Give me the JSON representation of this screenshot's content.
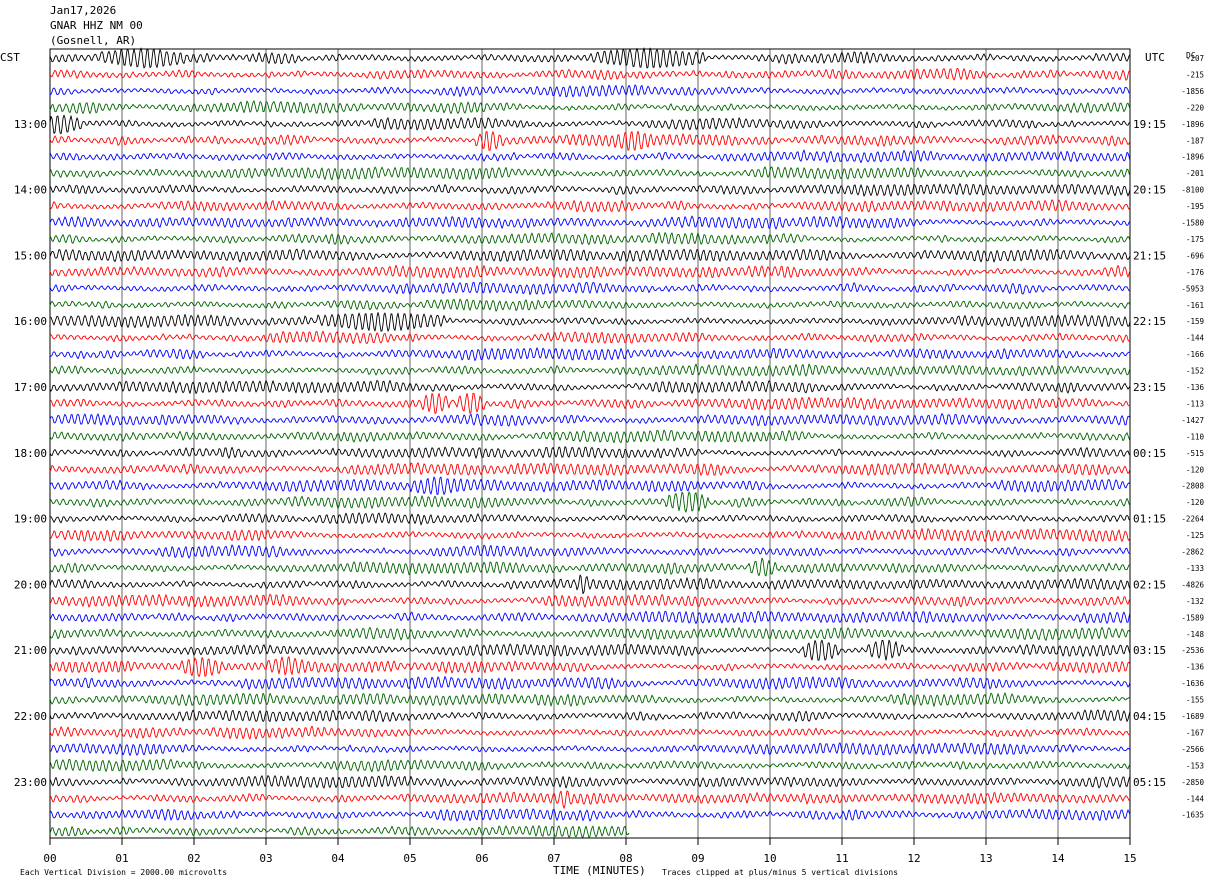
{
  "header": {
    "date": "Jan17,2026",
    "station": "GNAR HHZ NM 00",
    "location": "(Gosnell, AR)"
  },
  "left_tz": "CST",
  "right_tz": "UTC",
  "dc_label": "DC",
  "footer": {
    "scale_note": "Each Vertical Division = 2000.00 microvolts",
    "xlabel": "TIME (MINUTES)",
    "clip_note": "Traces clipped at plus/minus 5 vertical divisions"
  },
  "colors": {
    "trace_cycle": [
      "#000000",
      "#ff0000",
      "#0000ff",
      "#006400"
    ],
    "grid": "#000000",
    "background": "#ffffff"
  },
  "chart_data": {
    "type": "line",
    "subtype": "helicorder",
    "title": "GNAR HHZ NM 00",
    "xlabel": "TIME (MINUTES)",
    "xlim": [
      0,
      15
    ],
    "x_ticks": [
      "00",
      "01",
      "02",
      "03",
      "04",
      "05",
      "06",
      "07",
      "08",
      "09",
      "10",
      "11",
      "12",
      "13",
      "14",
      "15"
    ],
    "minutes_per_line": 15,
    "lines_total": 48,
    "last_line_end_minute": 8.05,
    "left_hour_labels": [
      "13:00",
      "14:00",
      "15:00",
      "16:00",
      "17:00",
      "18:00",
      "19:00",
      "20:00",
      "21:00",
      "22:00",
      "23:00"
    ],
    "right_hour_labels": [
      "19:15",
      "20:15",
      "21:15",
      "22:15",
      "23:15",
      "00:15",
      "01:15",
      "02:15",
      "03:15",
      "04:15",
      "05:15"
    ],
    "hour_label_start_line": 4,
    "dc_offsets": [
      "-207",
      "-215",
      "-1856",
      "-220",
      "-1896",
      "-187",
      "-1896",
      "-201",
      "-8100",
      "-195",
      "-1580",
      "-175",
      "-696",
      "-176",
      "-5953",
      "-161",
      "-159",
      "-144",
      "-166",
      "-152",
      "-136",
      "-113",
      "-1427",
      "-110",
      "-515",
      "-120",
      "-2808",
      "-120",
      "-2264",
      "-125",
      "-2862",
      "-133",
      "-4826",
      "-132",
      "-1589",
      "-148",
      "-2536",
      "-136",
      "-1636",
      "-155",
      "-1689",
      "-167",
      "-2566",
      "-153",
      "-2850",
      "-144",
      "-1635"
    ],
    "bursts": [
      {
        "line": 0,
        "minute": 1.3,
        "width": 0.6,
        "amp": 1.9
      },
      {
        "line": 0,
        "minute": 8.3,
        "width": 0.8,
        "amp": 1.9
      },
      {
        "line": 4,
        "minute": 0.15,
        "width": 0.3,
        "amp": 1.8
      },
      {
        "line": 5,
        "minute": 6.1,
        "width": 0.2,
        "amp": 2.0
      },
      {
        "line": 5,
        "minute": 8.1,
        "width": 0.3,
        "amp": 2.0
      },
      {
        "line": 16,
        "minute": 4.6,
        "width": 0.9,
        "amp": 1.6
      },
      {
        "line": 21,
        "minute": 5.35,
        "width": 0.2,
        "amp": 2.4
      },
      {
        "line": 21,
        "minute": 5.85,
        "width": 0.2,
        "amp": 2.4
      },
      {
        "line": 26,
        "minute": 5.4,
        "width": 0.4,
        "amp": 1.6
      },
      {
        "line": 27,
        "minute": 8.85,
        "width": 0.3,
        "amp": 2.4
      },
      {
        "line": 31,
        "minute": 9.9,
        "width": 0.2,
        "amp": 1.5
      },
      {
        "line": 32,
        "minute": 7.4,
        "width": 0.1,
        "amp": 2.0
      },
      {
        "line": 36,
        "minute": 10.7,
        "width": 0.25,
        "amp": 2.6
      },
      {
        "line": 36,
        "minute": 11.6,
        "width": 0.25,
        "amp": 2.0
      },
      {
        "line": 37,
        "minute": 2.1,
        "width": 0.3,
        "amp": 2.0
      },
      {
        "line": 37,
        "minute": 3.3,
        "width": 0.3,
        "amp": 1.6
      },
      {
        "line": 45,
        "minute": 7.15,
        "width": 0.1,
        "amp": 2.0
      }
    ]
  }
}
